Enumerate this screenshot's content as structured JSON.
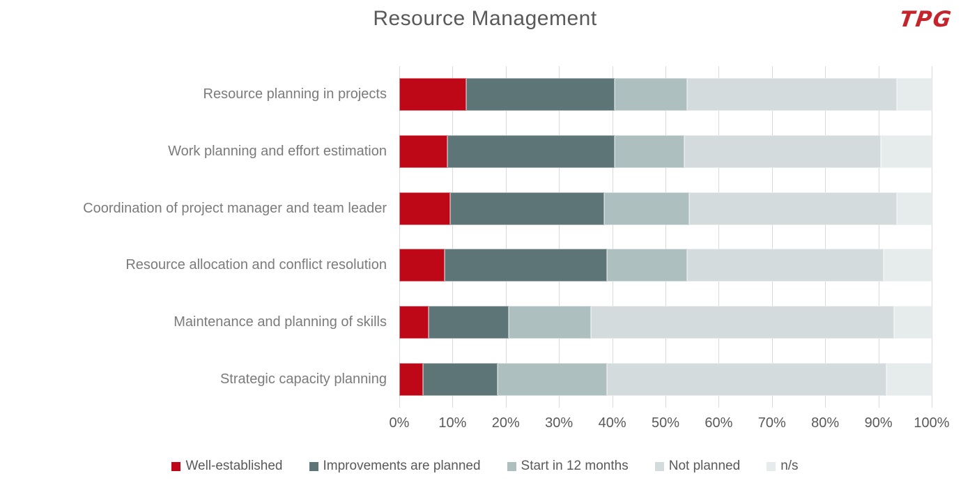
{
  "slide": {
    "logo_text": "TPG"
  },
  "chart_data": {
    "type": "bar",
    "orientation": "horizontal",
    "stacked": true,
    "title": "Resource Management",
    "xlabel": "",
    "ylabel": "",
    "xlim": [
      0,
      100
    ],
    "units": "percent",
    "grid": "vertical",
    "legend_position": "bottom",
    "categories": [
      "Resource planning in projects",
      "Work planning and effort estimation",
      "Coordination of project manager and team leader",
      "Resource allocation and conflict resolution",
      "Maintenance and planning of skills",
      "Strategic capacity planning"
    ],
    "series": [
      {
        "name": "Well-established",
        "color": "#BE0817",
        "values": [
          12.5,
          9.0,
          9.5,
          8.5,
          5.5,
          4.5
        ]
      },
      {
        "name": "Improvements are planned",
        "color": "#5E7577",
        "values": [
          28.0,
          31.5,
          29.0,
          30.5,
          15.0,
          14.0
        ]
      },
      {
        "name": "Start in 12 months",
        "color": "#AEBFC0",
        "values": [
          13.5,
          13.0,
          16.0,
          15.0,
          15.5,
          20.5
        ]
      },
      {
        "name": "Not planned",
        "color": "#D3DBDC",
        "values": [
          39.5,
          37.0,
          39.0,
          37.0,
          57.0,
          52.5
        ]
      },
      {
        "name": "n/s",
        "color": "#E6ECEB",
        "values": [
          6.5,
          9.5,
          6.5,
          9.0,
          7.0,
          8.5
        ]
      }
    ],
    "x_ticks": [
      "0%",
      "10%",
      "20%",
      "30%",
      "40%",
      "50%",
      "60%",
      "70%",
      "80%",
      "90%",
      "100%"
    ]
  },
  "colors": {
    "background": "#FFFFFF",
    "title_text": "#595959",
    "category_text": "#7B7B7B",
    "axis_text": "#595959",
    "legend_text": "#595959",
    "gridline": "#D9D9D9",
    "logo_red": "#C4242B"
  }
}
